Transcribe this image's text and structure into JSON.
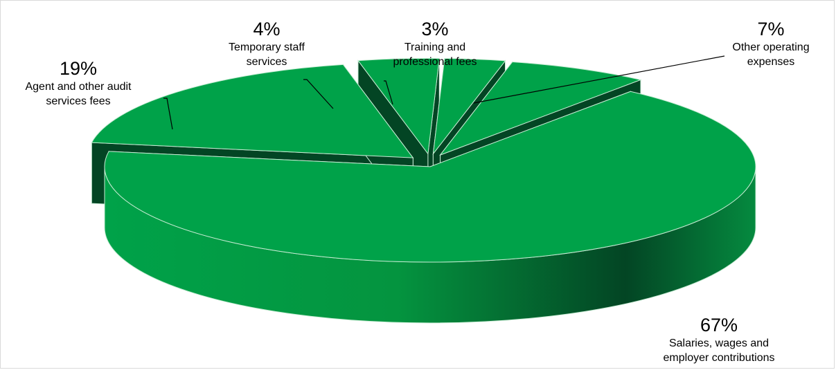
{
  "chart_data": {
    "type": "pie",
    "title": "",
    "slices": [
      {
        "label_lines": [
          "Salaries, wages and",
          "employer contributions"
        ],
        "value": 67,
        "value_label": "67%"
      },
      {
        "label_lines": [
          "Agent and other audit",
          "services fees"
        ],
        "value": 19,
        "value_label": "19%"
      },
      {
        "label_lines": [
          "Temporary staff",
          "services"
        ],
        "value": 4,
        "value_label": "4%"
      },
      {
        "label_lines": [
          "Training and",
          "professional fees"
        ],
        "value": 3,
        "value_label": "3%"
      },
      {
        "label_lines": [
          "Other operating",
          "expenses"
        ],
        "value": 7,
        "value_label": "7%"
      }
    ],
    "legend": "none",
    "style": "3d-exploded",
    "colors": {
      "top": "#00a249",
      "side_light": "#00a249",
      "side_mid": "#048a3e",
      "side_dark": "#034524",
      "edge": "#c8ecd4",
      "leader": "#000000"
    }
  }
}
